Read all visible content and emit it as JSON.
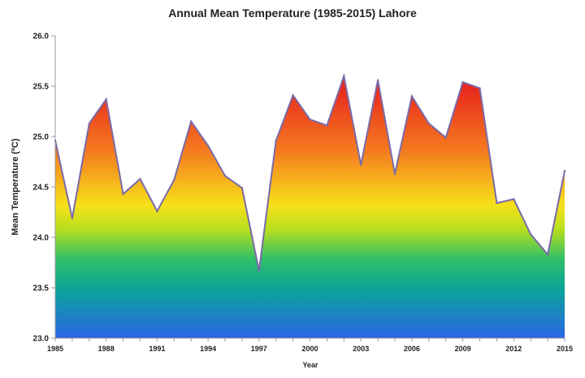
{
  "chart_data": {
    "type": "area",
    "title": "Annual Mean Temperature (1985-2015) Lahore",
    "xlabel": "Year",
    "ylabel": "Mean Temperature (ºC)",
    "ylim": [
      23.0,
      26.0
    ],
    "y_ticks": [
      "23.0",
      "23.5",
      "24.0",
      "24.5",
      "25.0",
      "25.5",
      "26.0"
    ],
    "x_ticks": [
      "1985",
      "1988",
      "1991",
      "1994",
      "1997",
      "2000",
      "2003",
      "2006",
      "2009",
      "2012",
      "2015"
    ],
    "grid": false,
    "legend": "none",
    "fill": "vertical gradient: red (high) through yellow and green to blue (low)",
    "line_color": "#7b6aa8",
    "gradient_colors": [
      "#e8281e",
      "#f47a1f",
      "#f7e11a",
      "#b7df1c",
      "#2fbf6a",
      "#0aa39a",
      "#2b66e6"
    ],
    "series": [
      {
        "x": [
          1985,
          1986,
          1987,
          1988,
          1989,
          1990,
          1991,
          1992,
          1993,
          1994,
          1995,
          1996,
          1997,
          1998,
          1999,
          2000,
          2001,
          2002,
          2003,
          2004,
          2005,
          2006,
          2007,
          2008,
          2009,
          2010,
          2011,
          2012,
          2013,
          2014,
          2015
        ],
        "values": [
          24.96,
          24.19,
          25.13,
          25.37,
          24.43,
          24.58,
          24.26,
          24.57,
          25.15,
          24.91,
          24.61,
          24.49,
          23.67,
          24.96,
          25.41,
          25.17,
          25.11,
          25.6,
          24.72,
          25.56,
          24.63,
          25.4,
          25.13,
          24.99,
          25.54,
          25.48,
          24.34,
          24.38,
          24.03,
          23.83,
          24.66
        ]
      }
    ]
  }
}
